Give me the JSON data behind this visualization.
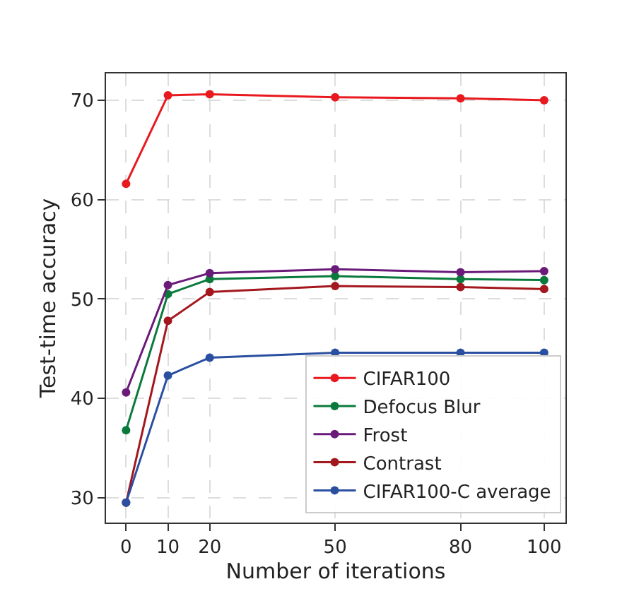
{
  "chart_data": {
    "type": "line",
    "xlabel": "Number of iterations",
    "ylabel": "Test-time accuracy",
    "x": [
      0,
      10,
      20,
      50,
      80,
      100
    ],
    "xlim": [
      -4.8,
      105.1
    ],
    "xticks": [
      0,
      10,
      20,
      50,
      80,
      100
    ],
    "ylim": [
      27.5,
      72.7
    ],
    "yticks": [
      30,
      40,
      50,
      60,
      70
    ],
    "grid": true,
    "legend": "bottom right",
    "marker": "circle",
    "line_style": "solid",
    "series": [
      {
        "name": "CIFAR100",
        "color": "#e8191f",
        "values": [
          61.6,
          70.5,
          70.6,
          70.3,
          70.2,
          70.0
        ]
      },
      {
        "name": "Defocus Blur",
        "color": "#0a7a3c",
        "values": [
          36.8,
          50.5,
          52.0,
          52.3,
          52.0,
          51.9
        ]
      },
      {
        "name": "Frost",
        "color": "#6a1b7a",
        "values": [
          40.6,
          51.4,
          52.6,
          53.0,
          52.7,
          52.8
        ]
      },
      {
        "name": "Contrast",
        "color": "#a3181e",
        "values": [
          29.5,
          47.8,
          50.7,
          51.3,
          51.2,
          51.0
        ]
      },
      {
        "name": "CIFAR100-C average",
        "color": "#2a4ea0",
        "values": [
          29.5,
          42.3,
          44.1,
          44.6,
          44.6,
          44.6
        ]
      }
    ]
  }
}
